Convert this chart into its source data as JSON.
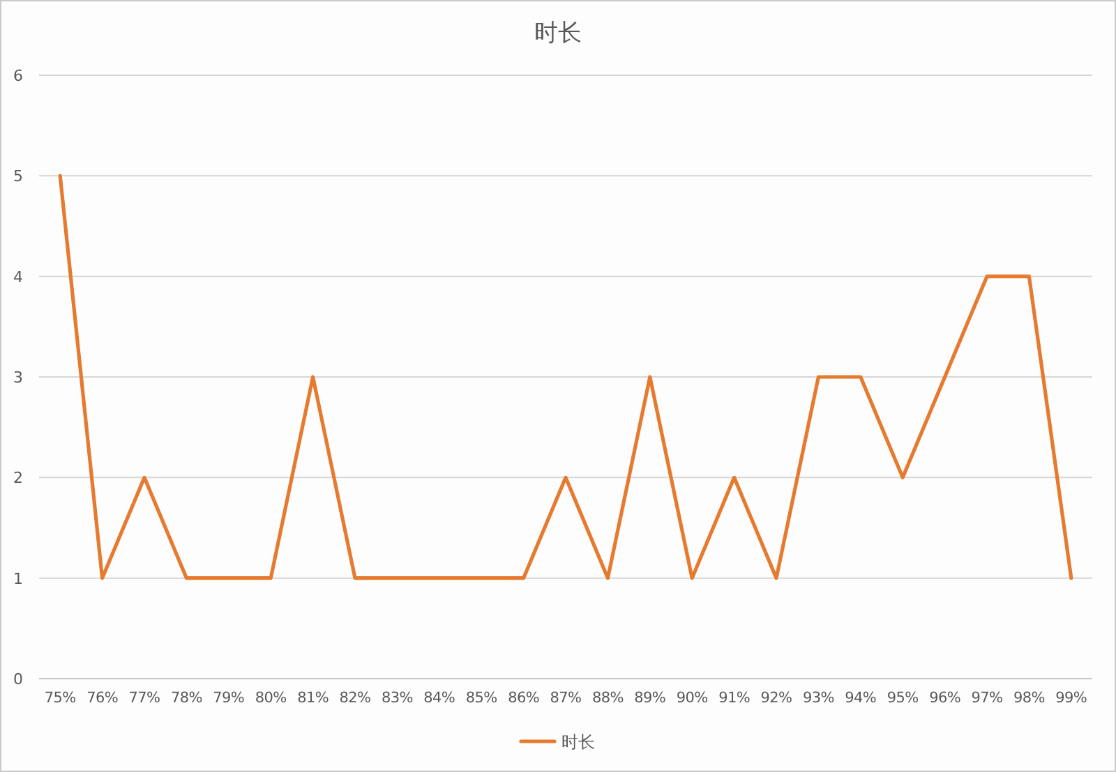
{
  "chart_data": {
    "type": "line",
    "title": "时长",
    "categories": [
      "75%",
      "76%",
      "77%",
      "78%",
      "79%",
      "80%",
      "81%",
      "82%",
      "83%",
      "84%",
      "85%",
      "86%",
      "87%",
      "88%",
      "89%",
      "90%",
      "91%",
      "92%",
      "93%",
      "94%",
      "95%",
      "96%",
      "97%",
      "98%",
      "99%"
    ],
    "series": [
      {
        "name": "时长",
        "color": "#e67a2e",
        "values": [
          5,
          1,
          2,
          1,
          1,
          1,
          3,
          1,
          1,
          1,
          1,
          1,
          2,
          1,
          3,
          1,
          2,
          1,
          3,
          3,
          2,
          3,
          4,
          4,
          1
        ]
      }
    ],
    "ylim": [
      0,
      6
    ],
    "yticks": [
      0,
      1,
      2,
      3,
      4,
      5,
      6
    ],
    "grid": "y",
    "legend": "bottom",
    "marker": "none",
    "line_style": "solid"
  }
}
